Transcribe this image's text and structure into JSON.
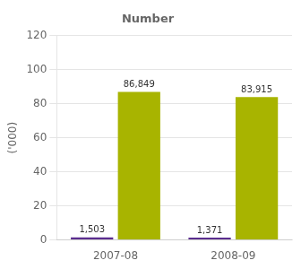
{
  "chart_data": {
    "type": "bar",
    "title": "Number",
    "y_label": "('000)",
    "categories": [
      "2007-08",
      "2008-09"
    ],
    "series": [
      {
        "color": "#5b2d8e",
        "values": [
          1.503,
          1.371
        ],
        "value_labels": [
          "1,503",
          "1,371"
        ]
      },
      {
        "color": "#a8b400",
        "values": [
          86.849,
          83.915
        ],
        "value_labels": [
          "86,849",
          "83,915"
        ]
      }
    ],
    "ylim": [
      0,
      120
    ],
    "yticks": [
      0,
      20,
      40,
      60,
      80,
      100,
      120
    ],
    "grid": "y",
    "data_labels": true
  }
}
